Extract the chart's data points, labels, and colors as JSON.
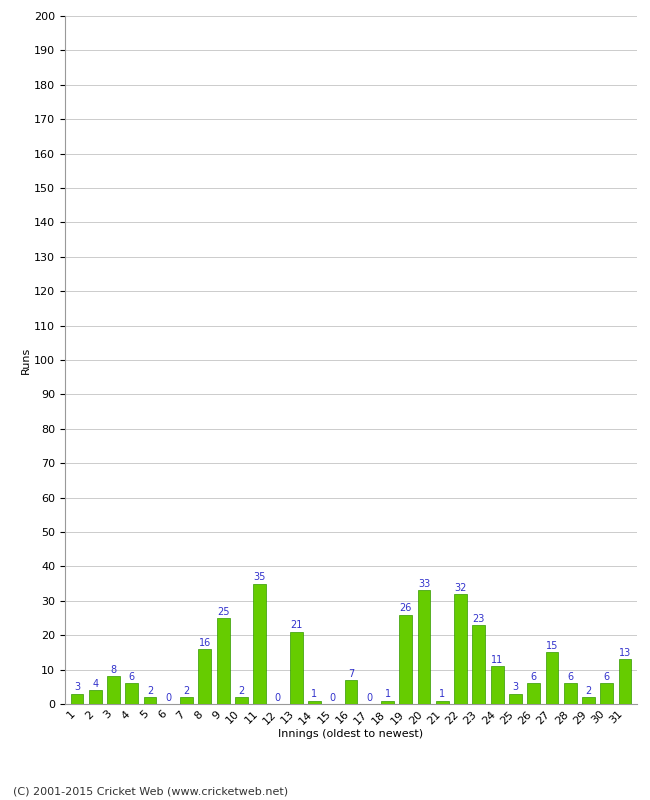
{
  "xlabel": "Innings (oldest to newest)",
  "ylabel": "Runs",
  "values": [
    3,
    4,
    8,
    6,
    2,
    0,
    2,
    16,
    25,
    2,
    35,
    0,
    21,
    1,
    0,
    7,
    0,
    1,
    26,
    33,
    1,
    32,
    23,
    11,
    3,
    6,
    15,
    6,
    2,
    6,
    13
  ],
  "labels": [
    "1",
    "2",
    "3",
    "4",
    "5",
    "6",
    "7",
    "8",
    "9",
    "10",
    "11",
    "12",
    "13",
    "14",
    "15",
    "16",
    "17",
    "18",
    "19",
    "20",
    "21",
    "22",
    "23",
    "24",
    "25",
    "26",
    "27",
    "28",
    "29",
    "30",
    "31"
  ],
  "bar_color": "#66cc00",
  "bar_edge_color": "#339900",
  "label_color": "#3333cc",
  "ylim": [
    0,
    200
  ],
  "yticks": [
    0,
    10,
    20,
    30,
    40,
    50,
    60,
    70,
    80,
    90,
    100,
    110,
    120,
    130,
    140,
    150,
    160,
    170,
    180,
    190,
    200
  ],
  "background_color": "#ffffff",
  "grid_color": "#cccccc",
  "footer": "(C) 2001-2015 Cricket Web (www.cricketweb.net)",
  "ylabel_fontsize": 8,
  "xlabel_fontsize": 8,
  "label_fontsize": 7,
  "tick_fontsize": 8,
  "footer_fontsize": 8
}
